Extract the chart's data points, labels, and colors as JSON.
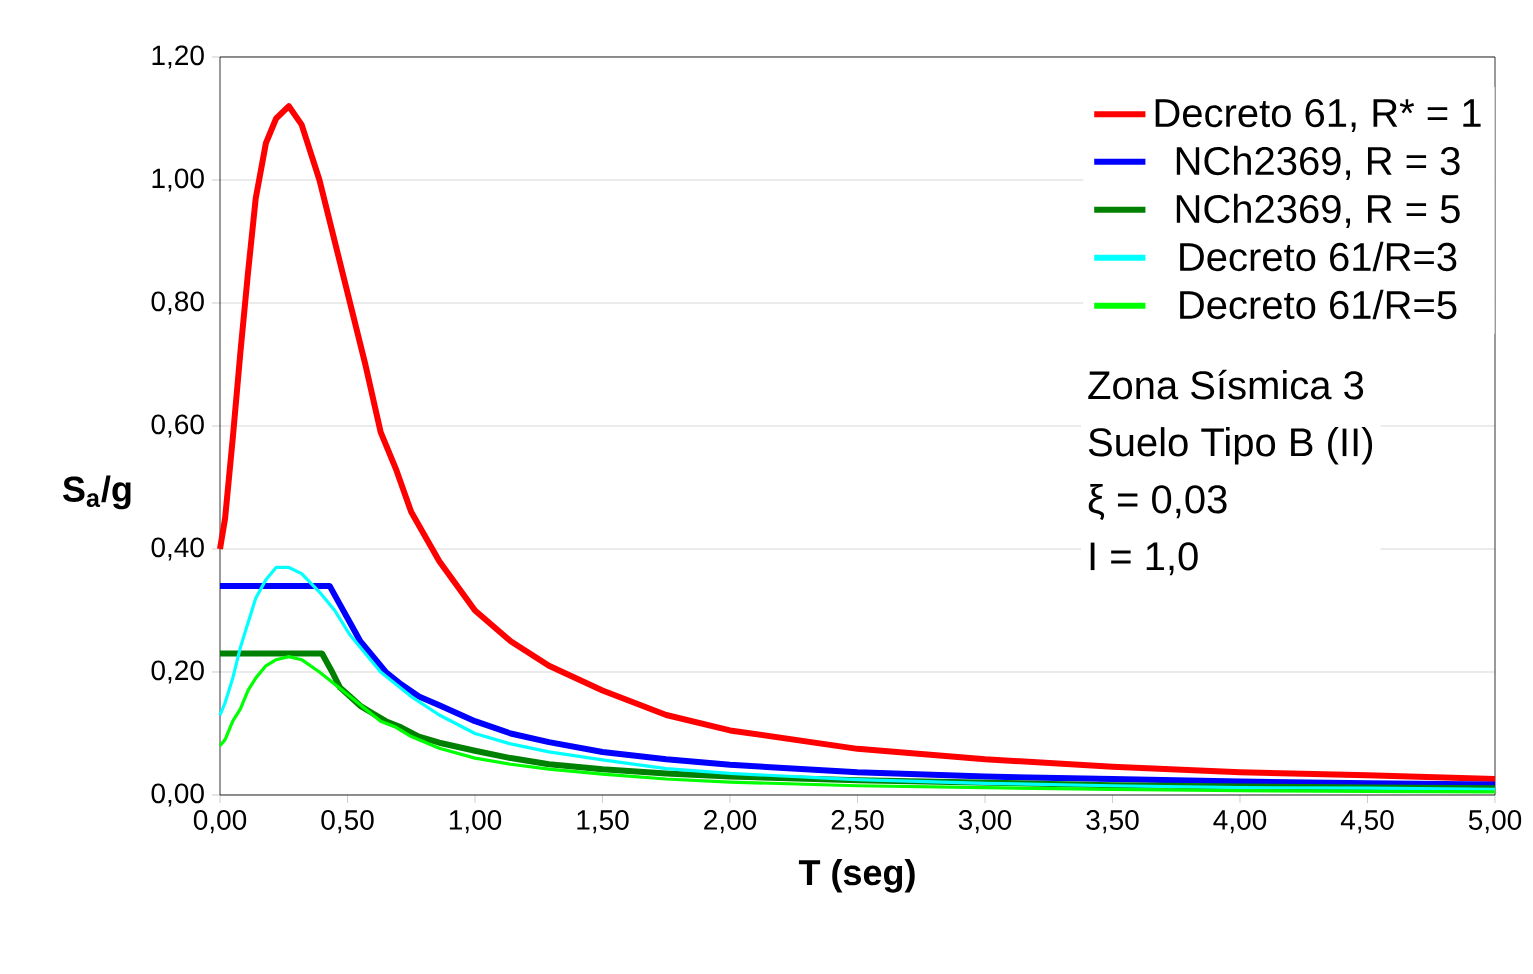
{
  "chart_data": {
    "type": "line",
    "xlabel": "T (seg)",
    "ylabel": "**S$_{a}$/g**",
    "xlim": [
      0,
      5
    ],
    "ylim": [
      0,
      1.2
    ],
    "xticks": [
      {
        "value": 0,
        "label": "0,00"
      },
      {
        "value": 0.5,
        "label": "0,50"
      },
      {
        "value": 1,
        "label": "1,00"
      },
      {
        "value": 1.5,
        "label": "1,50"
      },
      {
        "value": 2,
        "label": "2,00"
      },
      {
        "value": 2.5,
        "label": "2,50"
      },
      {
        "value": 3,
        "label": "3,00"
      },
      {
        "value": 3.5,
        "label": "3,50"
      },
      {
        "value": 4,
        "label": "4,00"
      },
      {
        "value": 4.5,
        "label": "4,50"
      },
      {
        "value": 5,
        "label": "5,00"
      }
    ],
    "yticks": [
      {
        "value": 0,
        "label": "0,00"
      },
      {
        "value": 0.2,
        "label": "0,20"
      },
      {
        "value": 0.4,
        "label": "0,40"
      },
      {
        "value": 0.6,
        "label": "0,60"
      },
      {
        "value": 0.8,
        "label": "0,80"
      },
      {
        "value": 1,
        "label": "1,00"
      },
      {
        "value": 1.2,
        "label": "1,20"
      }
    ],
    "grid": "y",
    "legend": "top right",
    "annotations": [
      "Zona Sísmica 3",
      "Suelo Tipo B (II)",
      "ξ = 0,03",
      "I = 1,0"
    ],
    "series": [
      {
        "name": "Decreto 61, R* = 1",
        "color": "#ff0000",
        "x": [
          0,
          0.02,
          0.05,
          0.08,
          0.11,
          0.14,
          0.18,
          0.22,
          0.27,
          0.32,
          0.39,
          0.45,
          0.51,
          0.57,
          0.63,
          0.69,
          0.75,
          0.86,
          1.0,
          1.14,
          1.29,
          1.5,
          1.75,
          2.0,
          2.5,
          3.0,
          3.5,
          4.0,
          4.5,
          5.0
        ],
        "values": [
          0.4,
          0.45,
          0.58,
          0.72,
          0.85,
          0.97,
          1.06,
          1.1,
          1.12,
          1.09,
          1.0,
          0.9,
          0.8,
          0.7,
          0.59,
          0.53,
          0.46,
          0.38,
          0.3,
          0.25,
          0.21,
          0.17,
          0.13,
          0.105,
          0.075,
          0.058,
          0.046,
          0.037,
          0.032,
          0.026
        ]
      },
      {
        "name": "NCh2369, R = 3",
        "color": "#0000ff",
        "x": [
          0,
          0.43,
          0.47,
          0.51,
          0.55,
          0.59,
          0.65,
          0.71,
          0.78,
          0.86,
          1.0,
          1.14,
          1.29,
          1.5,
          1.75,
          2.0,
          2.5,
          3.0,
          3.5,
          4.0,
          4.5,
          5.0
        ],
        "values": [
          0.34,
          0.34,
          0.31,
          0.28,
          0.25,
          0.23,
          0.2,
          0.18,
          0.16,
          0.146,
          0.12,
          0.1,
          0.086,
          0.07,
          0.058,
          0.049,
          0.037,
          0.03,
          0.026,
          0.022,
          0.019,
          0.017
        ]
      },
      {
        "name": "NCh2369, R = 5",
        "color": "#008000",
        "x": [
          0,
          0.4,
          0.44,
          0.47,
          0.51,
          0.55,
          0.59,
          0.65,
          0.71,
          0.78,
          0.86,
          1.0,
          1.14,
          1.29,
          1.5,
          1.75,
          2.0,
          2.5,
          3.0,
          3.5,
          4.0,
          4.5,
          5.0
        ],
        "values": [
          0.23,
          0.23,
          0.2,
          0.175,
          0.16,
          0.145,
          0.135,
          0.12,
          0.11,
          0.095,
          0.085,
          0.072,
          0.06,
          0.05,
          0.042,
          0.035,
          0.03,
          0.024,
          0.02,
          0.016,
          0.014,
          0.012,
          0.011
        ]
      },
      {
        "name": "Decreto 61/R=3",
        "color": "#00ffff",
        "x": [
          0,
          0.02,
          0.05,
          0.08,
          0.11,
          0.14,
          0.18,
          0.22,
          0.27,
          0.32,
          0.39,
          0.45,
          0.51,
          0.57,
          0.63,
          0.69,
          0.75,
          0.86,
          1.0,
          1.14,
          1.29,
          1.5,
          1.75,
          2.0,
          2.5,
          3.0,
          3.5,
          4.0,
          4.5,
          5.0
        ],
        "values": [
          0.13,
          0.15,
          0.19,
          0.24,
          0.28,
          0.32,
          0.35,
          0.37,
          0.37,
          0.36,
          0.33,
          0.3,
          0.26,
          0.23,
          0.2,
          0.18,
          0.16,
          0.13,
          0.1,
          0.083,
          0.07,
          0.057,
          0.043,
          0.035,
          0.025,
          0.019,
          0.015,
          0.012,
          0.011,
          0.009
        ]
      },
      {
        "name": "Decreto 61/R=5",
        "color": "#00ff00",
        "x": [
          0,
          0.02,
          0.05,
          0.08,
          0.11,
          0.14,
          0.18,
          0.22,
          0.27,
          0.32,
          0.39,
          0.45,
          0.51,
          0.57,
          0.63,
          0.69,
          0.75,
          0.86,
          1.0,
          1.14,
          1.29,
          1.5,
          1.75,
          2.0,
          2.5,
          3.0,
          3.5,
          4.0,
          4.5,
          5.0
        ],
        "values": [
          0.08,
          0.09,
          0.12,
          0.14,
          0.17,
          0.19,
          0.21,
          0.22,
          0.225,
          0.22,
          0.2,
          0.18,
          0.16,
          0.14,
          0.12,
          0.11,
          0.095,
          0.076,
          0.06,
          0.05,
          0.042,
          0.034,
          0.026,
          0.021,
          0.015,
          0.012,
          0.009,
          0.007,
          0.006,
          0.005
        ]
      }
    ]
  }
}
